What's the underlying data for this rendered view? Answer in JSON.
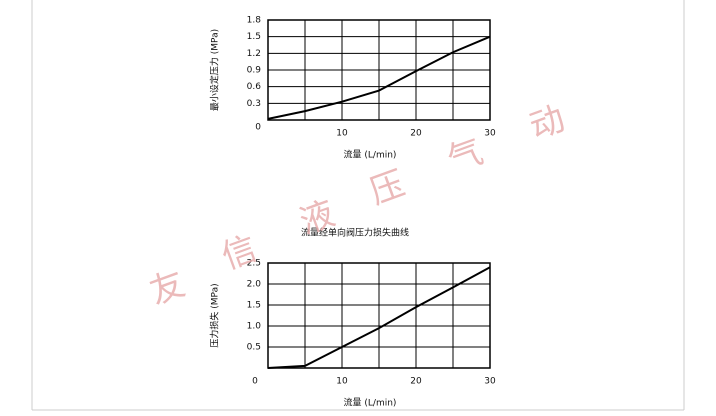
{
  "chart_data": [
    {
      "type": "line",
      "ylabel": "最小设定压力 (MPa)",
      "xlabel": "流量 (L/min)",
      "xlim": [
        0,
        30
      ],
      "ylim": [
        0,
        1.8
      ],
      "xticks": [
        10,
        20,
        30
      ],
      "xgrid": [
        5,
        10,
        15,
        20,
        25
      ],
      "yticks": [
        0,
        0.3,
        0.6,
        0.9,
        1.2,
        1.5,
        1.8
      ],
      "grid": true,
      "series": [
        {
          "color": "#000000",
          "x": [
            0,
            5,
            10,
            15,
            20,
            25,
            30
          ],
          "values": [
            0.02,
            0.16,
            0.33,
            0.53,
            0.88,
            1.22,
            1.5
          ]
        }
      ]
    },
    {
      "type": "line",
      "title": "流量经单向阀压力损失曲线",
      "ylabel": "压力损失 (MPa)",
      "xlabel": "流量 (L/min)",
      "xlim": [
        0,
        30
      ],
      "ylim": [
        0,
        2.5
      ],
      "xticks": [
        0,
        10,
        20,
        30
      ],
      "xgrid": [
        5,
        10,
        15,
        20,
        25
      ],
      "yticks": [
        0.5,
        {
          "value": 1,
          "label": "1.0"
        },
        1.5,
        {
          "value": 2,
          "label": "2.0"
        },
        2.5
      ],
      "grid": true,
      "series": [
        {
          "color": "#000000",
          "x": [
            0,
            5,
            10,
            15,
            20,
            25,
            30
          ],
          "values": [
            0,
            0.05,
            0.5,
            0.95,
            1.45,
            1.92,
            2.4
          ]
        }
      ]
    }
  ],
  "watermark": [
    "友",
    "信",
    "液",
    "压",
    "气",
    "动"
  ]
}
